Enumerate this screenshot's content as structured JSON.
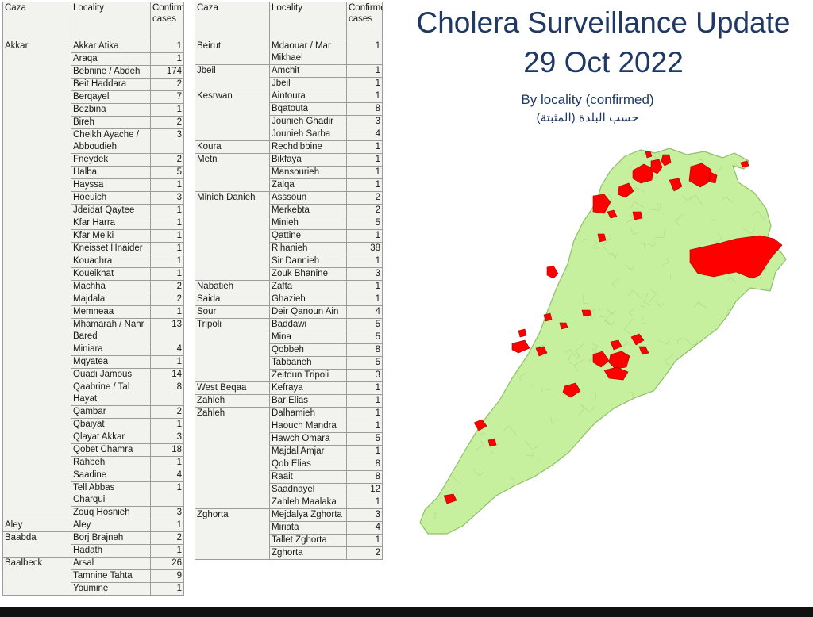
{
  "title": "Cholera Surveillance Update",
  "date": "29 Oct 2022",
  "subtitle_en": "By locality (confirmed)",
  "subtitle_ar": "حسب البلدة (المثبتة)",
  "headers": {
    "caza": "Caza",
    "locality": "Locality",
    "cases": "Confirmed cases"
  },
  "colors": {
    "land": "#c6ef9e",
    "cases": "#ff0000",
    "title": "#1f3864"
  },
  "left_table": [
    {
      "caza": "Akkar",
      "rows": [
        [
          "Akkar Atika",
          "1"
        ],
        [
          "Araqa",
          "1"
        ],
        [
          "Bebnine / Abdeh",
          "174"
        ],
        [
          "Beit Haddara",
          "2"
        ],
        [
          "Berqayel",
          "7"
        ],
        [
          "Bezbina",
          "1"
        ],
        [
          "Bireh",
          "2"
        ],
        [
          "Cheikh Ayache / Abboudieh",
          "3"
        ],
        [
          "Fneydek",
          "2"
        ],
        [
          "Halba",
          "5"
        ],
        [
          "Hayssa",
          "1"
        ],
        [
          "Hoeuich",
          "3"
        ],
        [
          "Jdeidat Qaytee",
          "1"
        ],
        [
          "Kfar Harra",
          "1"
        ],
        [
          "Kfar Melki",
          "1"
        ],
        [
          "Kneisset Hnaider",
          "1"
        ],
        [
          "Kouachra",
          "1"
        ],
        [
          "Koueikhat",
          "1"
        ],
        [
          "Machha",
          "2"
        ],
        [
          "Majdala",
          "2"
        ],
        [
          "Memneaa",
          "1"
        ],
        [
          "Mhamarah / Nahr Bared",
          "13"
        ],
        [
          "Miniara",
          "4"
        ],
        [
          "Mqyatea",
          "1"
        ],
        [
          "Ouadi Jamous",
          "14"
        ],
        [
          "Qaabrine / Tal Hayat",
          "8"
        ],
        [
          "Qambar",
          "2"
        ],
        [
          "Qbaiyat",
          "1"
        ],
        [
          "Qlayat Akkar",
          "3"
        ],
        [
          "Qobet Chamra",
          "18"
        ],
        [
          "Rahbeh",
          "1"
        ],
        [
          "Saadine",
          "4"
        ],
        [
          "Tell Abbas Charqui",
          "1"
        ],
        [
          "Zouq Hosnieh",
          "3"
        ]
      ]
    },
    {
      "caza": "Aley",
      "rows": [
        [
          "Aley",
          "1"
        ]
      ]
    },
    {
      "caza": "Baabda",
      "rows": [
        [
          "Borj Brajneh",
          "2"
        ],
        [
          "Hadath",
          "1"
        ]
      ]
    },
    {
      "caza": "Baalbeck",
      "rows": [
        [
          "Arsal",
          "26"
        ],
        [
          "Tamnine Tahta",
          "9"
        ],
        [
          "Youmine",
          "1"
        ]
      ]
    }
  ],
  "right_table": [
    {
      "caza": "Beirut",
      "rows": [
        [
          "Mdaouar / Mar Mikhael",
          "1"
        ]
      ]
    },
    {
      "caza": "Jbeil",
      "rows": [
        [
          "Amchit",
          "1"
        ],
        [
          "Jbeil",
          "1"
        ]
      ]
    },
    {
      "caza": "Kesrwan",
      "rows": [
        [
          "Aintoura",
          "1"
        ],
        [
          "Bqatouta",
          "8"
        ],
        [
          "Jounieh Ghadir",
          "3"
        ],
        [
          "Jounieh Sarba",
          "4"
        ]
      ]
    },
    {
      "caza": "Koura",
      "rows": [
        [
          "Rechdibbine",
          "1"
        ]
      ]
    },
    {
      "caza": "Metn",
      "rows": [
        [
          "Bikfaya",
          "1"
        ],
        [
          "Mansourieh",
          "1"
        ],
        [
          "Zalqa",
          "1"
        ]
      ]
    },
    {
      "caza": "Minieh Danieh",
      "rows": [
        [
          "Asssoun",
          "2"
        ],
        [
          "Merkebta",
          "2"
        ],
        [
          "Minieh",
          "5"
        ],
        [
          "Qattine",
          "1"
        ],
        [
          "Rihanieh",
          "38"
        ],
        [
          "Sir Dannieh",
          "1"
        ],
        [
          "Zouk Bhanine",
          "3"
        ]
      ]
    },
    {
      "caza": "Nabatieh",
      "rows": [
        [
          "Zafta",
          "1"
        ]
      ]
    },
    {
      "caza": "Saida",
      "rows": [
        [
          "Ghazieh",
          "1"
        ]
      ]
    },
    {
      "caza": "Sour",
      "rows": [
        [
          "Deir Qanoun Ain",
          "4"
        ]
      ]
    },
    {
      "caza": "Tripoli",
      "rows": [
        [
          "Baddawi",
          "5"
        ],
        [
          "Mina",
          "5"
        ],
        [
          "Qobbeh",
          "8"
        ],
        [
          "Tabbaneh",
          "5"
        ],
        [
          "Zeitoun Tripoli",
          "3"
        ]
      ]
    },
    {
      "caza": "West Beqaa",
      "rows": [
        [
          "Kefraya",
          "1"
        ]
      ]
    },
    {
      "caza": "Zahleh",
      "rows": [
        [
          "Bar Elias",
          "1"
        ]
      ]
    },
    {
      "caza": "Zahleh",
      "rows": [
        [
          "Dalhamieh",
          "1"
        ],
        [
          "Haouch Mandra",
          "1"
        ],
        [
          "Hawch Omara",
          "5"
        ],
        [
          "Majdal Amjar",
          "1"
        ],
        [
          "Qob Elias",
          "8"
        ],
        [
          "Raait",
          "8"
        ],
        [
          "Saadnayel",
          "12"
        ],
        [
          "Zahleh Maalaka",
          "1"
        ]
      ]
    },
    {
      "caza": "Zghorta",
      "rows": [
        [
          "Mejdalya Zghorta",
          "3"
        ],
        [
          "Miriata",
          "4"
        ],
        [
          "Tallet Zghorta",
          "1"
        ],
        [
          "Zghorta",
          "2"
        ]
      ]
    }
  ]
}
